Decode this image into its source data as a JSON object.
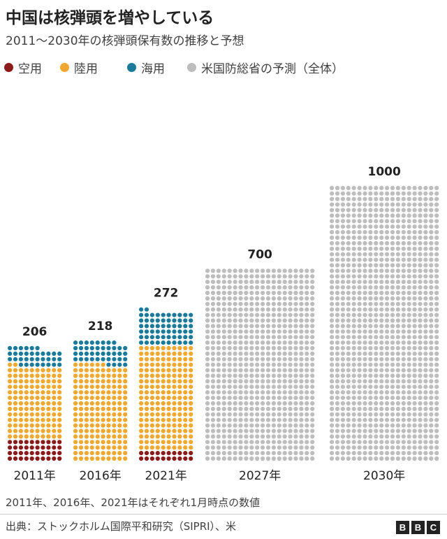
{
  "title": "中国は核弾頭を増やしている",
  "subtitle": "2011〜2030年の核弾頭保有数の推移と予想",
  "legend": [
    {
      "label": "空用",
      "color": "#8b1a1a"
    },
    {
      "label": "陸用",
      "color": "#f0a830"
    },
    {
      "label": "海用",
      "color": "#1b7a99"
    },
    {
      "label": "米国防総省の予測（全体）",
      "color": "#bdbdbd"
    }
  ],
  "chart_data": {
    "type": "waffle",
    "title": "中国は核弾頭を増やしている",
    "subtitle": "2011〜2030年の核弾頭保有数の推移と予想",
    "categories": [
      "2011年",
      "2016年",
      "2021年",
      "2027年",
      "2030年"
    ],
    "totals": [
      206,
      218,
      272,
      700,
      1000
    ],
    "series": [
      {
        "name": "空用",
        "color": "#8b1a1a",
        "values": [
          40,
          0,
          20,
          0,
          0
        ]
      },
      {
        "name": "陸用",
        "color": "#f0a830",
        "values": [
          132,
          176,
          190,
          0,
          0
        ]
      },
      {
        "name": "海用",
        "color": "#1b7a99",
        "values": [
          34,
          42,
          62,
          0,
          0
        ]
      },
      {
        "name": "米国防総省の予測（全体）",
        "color": "#bdbdbd",
        "values": [
          0,
          0,
          0,
          700,
          1000
        ]
      }
    ]
  },
  "footnote": "2011年、2016年、2021年はそれぞれ1月時点の数値",
  "source": "出典：ストックホルム国際平和研究（SIPRI）、米",
  "logo": [
    "B",
    "B",
    "C"
  ]
}
